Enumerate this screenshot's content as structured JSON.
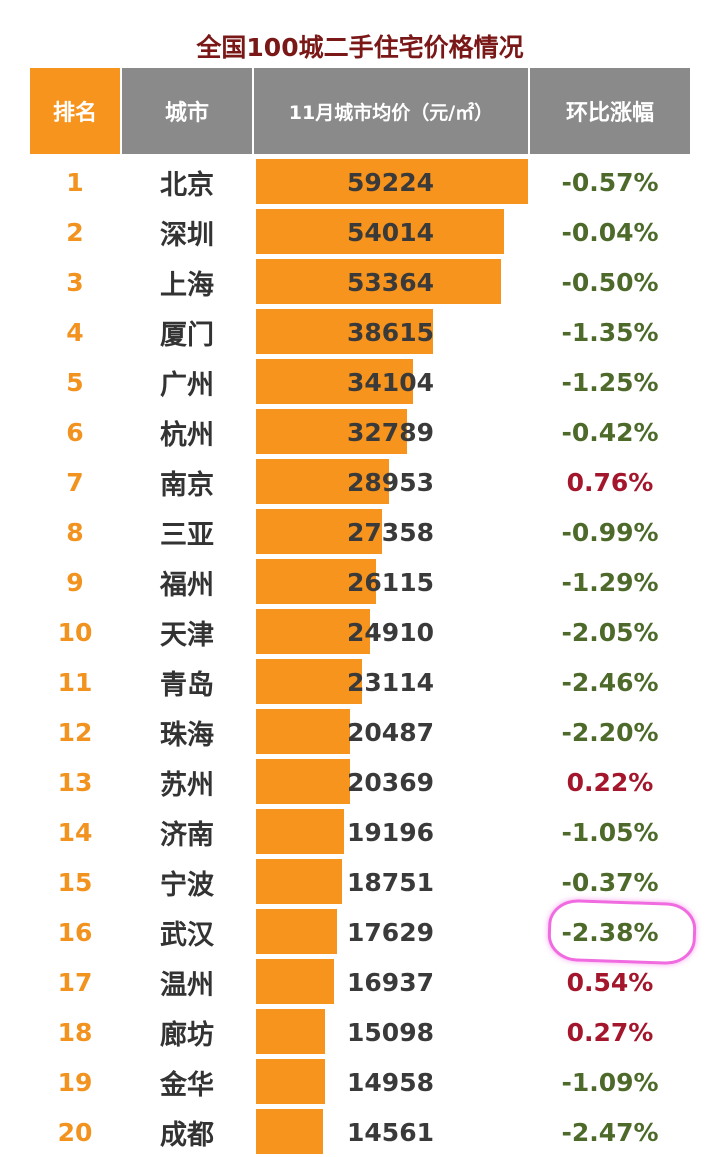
{
  "title": "全国100城二手住宅价格情况",
  "table": {
    "header": [
      "排名",
      "城市",
      "11月城市均价（元/㎡）",
      "环比涨幅"
    ],
    "colors": {
      "rank": "#f2921f",
      "bar": "#f7941d",
      "rise": "#a3162b",
      "fall": "#4d6a2a",
      "header_rank": "#f7941d",
      "header": "#8a8a8a"
    },
    "rows": [
      [
        1,
        "北京",
        59224,
        "-0.57%"
      ],
      [
        2,
        "深圳",
        54014,
        "-0.04%"
      ],
      [
        3,
        "上海",
        53364,
        "-0.50%"
      ],
      [
        4,
        "厦门",
        38615,
        "-1.35%"
      ],
      [
        5,
        "广州",
        34104,
        "-1.25%"
      ],
      [
        6,
        "杭州",
        32789,
        "-0.42%"
      ],
      [
        7,
        "南京",
        28953,
        "0.76%"
      ],
      [
        8,
        "三亚",
        27358,
        "-0.99%"
      ],
      [
        9,
        "福州",
        26115,
        "-1.29%"
      ],
      [
        10,
        "天津",
        24910,
        "-2.05%"
      ],
      [
        11,
        "青岛",
        23114,
        "-2.46%"
      ],
      [
        12,
        "珠海",
        20487,
        "-2.20%"
      ],
      [
        13,
        "苏州",
        20369,
        "0.22%"
      ],
      [
        14,
        "济南",
        19196,
        "-1.05%"
      ],
      [
        15,
        "宁波",
        18751,
        "-0.37%"
      ],
      [
        16,
        "武汉",
        17629,
        "-2.38%"
      ],
      [
        17,
        "温州",
        16937,
        "0.54%"
      ],
      [
        18,
        "廊坊",
        15098,
        "0.27%"
      ],
      [
        19,
        "金华",
        14958,
        "-1.09%"
      ],
      [
        20,
        "成都",
        14561,
        "-2.47%"
      ]
    ]
  }
}
